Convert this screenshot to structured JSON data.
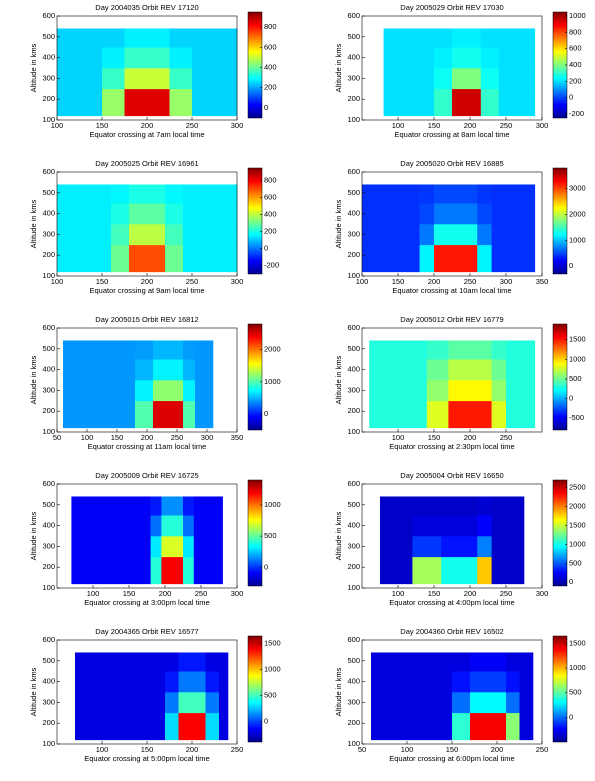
{
  "chart_data": [
    {
      "type": "heatmap",
      "title": "Day 2004035 Orbit REV 17120",
      "x_label": "Equator crossing at 7am local time",
      "y_label": "Altitude in kms",
      "xlim": [
        100,
        300
      ],
      "xticks": [
        100,
        150,
        200,
        250,
        300
      ],
      "ylim": [
        100,
        600
      ],
      "yticks": [
        100,
        200,
        300,
        400,
        500,
        600
      ],
      "clim": [
        -100,
        950
      ],
      "cticks": [
        0,
        200,
        400,
        600,
        800
      ],
      "x_edges": [
        100,
        150,
        175,
        225,
        250,
        300
      ],
      "y_edges": [
        120,
        250,
        350,
        450,
        540
      ],
      "z": [
        [
          250,
          450,
          850,
          450,
          250
        ],
        [
          250,
          350,
          500,
          350,
          250
        ],
        [
          250,
          280,
          350,
          280,
          250
        ],
        [
          250,
          250,
          280,
          250,
          250
        ]
      ]
    },
    {
      "type": "heatmap",
      "title": "Day 2005029 Orbit REV 17030",
      "x_label": "Equator crossing at 8am local time",
      "y_label": "Altitude in kms",
      "xlim": [
        50,
        300
      ],
      "xticks": [
        100,
        150,
        200,
        250,
        300
      ],
      "ylim": [
        100,
        600
      ],
      "yticks": [
        100,
        200,
        300,
        400,
        500,
        600
      ],
      "clim": [
        -250,
        1050
      ],
      "cticks": [
        -200,
        0,
        200,
        400,
        600,
        800,
        1000
      ],
      "x_edges": [
        80,
        150,
        175,
        215,
        240,
        290
      ],
      "y_edges": [
        120,
        250,
        350,
        450,
        540
      ],
      "z": [
        [
          200,
          300,
          950,
          300,
          200
        ],
        [
          200,
          250,
          400,
          250,
          200
        ],
        [
          200,
          220,
          260,
          220,
          200
        ],
        [
          200,
          200,
          220,
          200,
          200
        ]
      ]
    },
    {
      "type": "heatmap",
      "title": "Day 2005025 Orbit REV 16961",
      "x_label": "Equator crossing at 9am local time",
      "y_label": "Altitude in kms",
      "xlim": [
        100,
        300
      ],
      "xticks": [
        100,
        150,
        200,
        250,
        300
      ],
      "ylim": [
        100,
        600
      ],
      "yticks": [
        100,
        200,
        300,
        400,
        500,
        600
      ],
      "clim": [
        -300,
        950
      ],
      "cticks": [
        -200,
        0,
        200,
        400,
        600,
        800
      ],
      "x_edges": [
        100,
        160,
        180,
        220,
        240,
        300
      ],
      "y_edges": [
        120,
        250,
        350,
        450,
        540
      ],
      "z": [
        [
          150,
          300,
          700,
          300,
          150
        ],
        [
          150,
          250,
          400,
          250,
          150
        ],
        [
          150,
          200,
          280,
          200,
          150
        ],
        [
          150,
          160,
          200,
          160,
          150
        ]
      ]
    },
    {
      "type": "heatmap",
      "title": "Day 2005020 Orbit REV 16885",
      "x_label": "Equator crossing at 10am local time",
      "y_label": "Altitude in kms",
      "xlim": [
        100,
        350
      ],
      "xticks": [
        100,
        150,
        200,
        250,
        300,
        350
      ],
      "ylim": [
        100,
        600
      ],
      "yticks": [
        100,
        200,
        300,
        400,
        500,
        600
      ],
      "clim": [
        -300,
        3800
      ],
      "cticks": [
        0,
        1000,
        2000,
        3000
      ],
      "x_edges": [
        100,
        180,
        200,
        260,
        280,
        340
      ],
      "y_edges": [
        120,
        250,
        350,
        450,
        540
      ],
      "z": [
        [
          400,
          1200,
          3200,
          1200,
          400
        ],
        [
          400,
          700,
          1300,
          700,
          400
        ],
        [
          400,
          500,
          700,
          500,
          400
        ],
        [
          400,
          420,
          500,
          420,
          400
        ]
      ]
    },
    {
      "type": "heatmap",
      "title": "Day 2005015 Orbit REV 16812",
      "x_label": "Equator crossing at 11am local time",
      "y_label": "Altitude in kms",
      "xlim": [
        50,
        350
      ],
      "xticks": [
        50,
        100,
        150,
        200,
        250,
        300,
        350
      ],
      "ylim": [
        100,
        600
      ],
      "yticks": [
        100,
        200,
        300,
        400,
        500,
        600
      ],
      "clim": [
        -500,
        2800
      ],
      "cticks": [
        0,
        1000,
        2000
      ],
      "x_edges": [
        60,
        180,
        210,
        260,
        280,
        310
      ],
      "y_edges": [
        120,
        250,
        350,
        450,
        540
      ],
      "z": [
        [
          400,
          1000,
          2500,
          1000,
          400
        ],
        [
          400,
          700,
          1200,
          700,
          400
        ],
        [
          400,
          500,
          700,
          500,
          400
        ],
        [
          400,
          420,
          500,
          420,
          400
        ]
      ]
    },
    {
      "type": "heatmap",
      "title": "Day 2005012 Orbit REV 16779",
      "x_label": "Equator crossing at 2:30pm local time",
      "y_label": "Altitude in kms",
      "xlim": [
        50,
        300
      ],
      "xticks": [
        100,
        150,
        200,
        250
      ],
      "ylim": [
        100,
        600
      ],
      "yticks": [
        100,
        200,
        300,
        400,
        500,
        600
      ],
      "clim": [
        -800,
        1900
      ],
      "cticks": [
        -500,
        0,
        500,
        1000,
        1500
      ],
      "x_edges": [
        60,
        140,
        170,
        230,
        250,
        290
      ],
      "y_edges": [
        120,
        250,
        350,
        450,
        540
      ],
      "z": [
        [
          300,
          800,
          1500,
          800,
          300
        ],
        [
          300,
          600,
          900,
          600,
          300
        ],
        [
          300,
          500,
          700,
          500,
          300
        ],
        [
          300,
          350,
          450,
          350,
          300
        ]
      ]
    },
    {
      "type": "heatmap",
      "title": "Day 2005009 Orbit REV 16725",
      "x_label": "Equator crossing at 3:00pm local time",
      "y_label": "Altitude in kms",
      "xlim": [
        50,
        300
      ],
      "xticks": [
        100,
        150,
        200,
        250,
        300
      ],
      "ylim": [
        100,
        600
      ],
      "yticks": [
        100,
        200,
        300,
        400,
        500,
        600
      ],
      "clim": [
        -300,
        1400
      ],
      "cticks": [
        0,
        500,
        1000
      ],
      "x_edges": [
        70,
        180,
        195,
        225,
        240,
        280
      ],
      "y_edges": [
        120,
        250,
        350,
        450,
        540
      ],
      "z": [
        [
          -100,
          400,
          1200,
          400,
          -100
        ],
        [
          -100,
          300,
          700,
          300,
          -100
        ],
        [
          -100,
          100,
          400,
          100,
          -100
        ],
        [
          -100,
          -50,
          150,
          -50,
          -100
        ]
      ]
    },
    {
      "type": "heatmap",
      "title": "Day 2005004 Orbit REV 16650",
      "x_label": "Equator crossing at 4:00pm local time",
      "y_label": "Altitude in kms",
      "xlim": [
        50,
        300
      ],
      "xticks": [
        100,
        150,
        200,
        250,
        300
      ],
      "ylim": [
        100,
        600
      ],
      "yticks": [
        100,
        200,
        300,
        400,
        500,
        600
      ],
      "clim": [
        -100,
        2700
      ],
      "cticks": [
        0,
        500,
        1000,
        1500,
        2000,
        2500
      ],
      "x_edges": [
        75,
        120,
        160,
        210,
        230,
        275
      ],
      "y_edges": [
        120,
        250,
        350,
        450,
        540
      ],
      "z": [
        [
          100,
          1400,
          1000,
          1800,
          100
        ],
        [
          100,
          400,
          300,
          600,
          100
        ],
        [
          100,
          150,
          150,
          250,
          100
        ],
        [
          100,
          100,
          100,
          120,
          100
        ]
      ]
    },
    {
      "type": "heatmap",
      "title": "Day 2004365 Orbit REV 16577",
      "x_label": "Equator crossing at 5:00pm local time",
      "y_label": "Altitude in kms",
      "xlim": [
        50,
        250
      ],
      "xticks": [
        100,
        150,
        200,
        250
      ],
      "ylim": [
        100,
        600
      ],
      "yticks": [
        100,
        200,
        300,
        400,
        500,
        600
      ],
      "clim": [
        -400,
        1650
      ],
      "cticks": [
        0,
        500,
        1000,
        1500
      ],
      "x_edges": [
        70,
        170,
        185,
        215,
        230,
        240
      ],
      "y_edges": [
        120,
        250,
        350,
        450,
        540
      ],
      "z": [
        [
          -200,
          300,
          1400,
          300,
          -200
        ],
        [
          -200,
          100,
          500,
          100,
          -200
        ],
        [
          -200,
          -100,
          100,
          -100,
          -200
        ],
        [
          -200,
          -200,
          -100,
          -200,
          -200
        ]
      ]
    },
    {
      "type": "heatmap",
      "title": "Day 2004360 Orbit REV 16502",
      "x_label": "Equator crossing at 6:00pm local time",
      "y_label": "Altitude in kms",
      "xlim": [
        50,
        250
      ],
      "xticks": [
        50,
        100,
        150,
        200,
        250
      ],
      "ylim": [
        100,
        600
      ],
      "yticks": [
        100,
        200,
        300,
        400,
        500,
        600
      ],
      "clim": [
        -500,
        1650
      ],
      "cticks": [
        0,
        500,
        1000,
        1500
      ],
      "x_edges": [
        60,
        150,
        170,
        210,
        225,
        240
      ],
      "y_edges": [
        120,
        250,
        350,
        450,
        540
      ],
      "z": [
        [
          -300,
          400,
          1400,
          600,
          -300
        ],
        [
          -300,
          0,
          300,
          0,
          -300
        ],
        [
          -300,
          -200,
          -100,
          -200,
          -300
        ],
        [
          -300,
          -300,
          -250,
          -300,
          -300
        ]
      ]
    }
  ]
}
